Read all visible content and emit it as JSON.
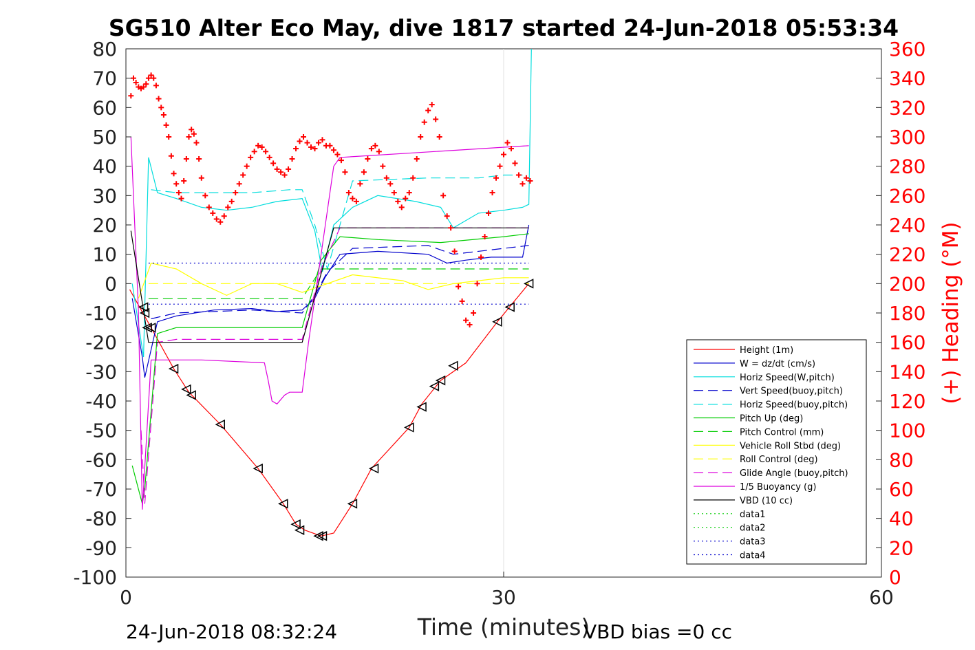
{
  "chart_data": {
    "type": "line",
    "title": "SG510 Alter Eco May, dive 1817 started 24-Jun-2018 05:53:34",
    "xlabel": "Time (minutes)",
    "ylabel_right": "(+) Heading (°M)",
    "xlim": [
      0,
      60
    ],
    "ylim_left": [
      -100,
      80
    ],
    "ylim_right": [
      0,
      360
    ],
    "x_ticks": [
      0,
      30,
      60
    ],
    "y_left_ticks": [
      80,
      70,
      60,
      50,
      40,
      30,
      20,
      10,
      0,
      -10,
      -20,
      -30,
      -40,
      -50,
      -60,
      -70,
      -80,
      -90,
      -100
    ],
    "y_right_ticks": [
      360,
      340,
      320,
      300,
      280,
      260,
      240,
      220,
      200,
      180,
      160,
      140,
      120,
      100,
      80,
      60,
      40,
      20,
      0
    ],
    "grid": "x at 30 only",
    "legend_position": "bottom-right",
    "footer_left": "24-Jun-2018 08:32:24",
    "footer_right": "VBD bias =0 cc",
    "series": [
      {
        "name": "Height (1m)",
        "color": "#ff0000",
        "style": "solid",
        "x": [
          0.3,
          2.0,
          3.8,
          5.0,
          7.5,
          10.5,
          12.5,
          13.5,
          14.2,
          15.5,
          16.5,
          18,
          19.5,
          22.5,
          23.5,
          25,
          27,
          29.5,
          32
        ],
        "y": [
          -2,
          -15,
          -29,
          -37,
          -48,
          -63,
          -75,
          -82,
          -84,
          -86,
          -85,
          -75,
          -63,
          -49,
          -41,
          -33,
          -27,
          -13,
          0
        ]
      },
      {
        "name": "W = dz/dt (cm/s)",
        "color": "#0000cc",
        "style": "solid",
        "x": [
          0.5,
          1.3,
          1.5,
          2.5,
          4,
          7,
          10,
          12,
          14,
          15,
          15.8,
          17,
          20,
          24,
          25.5,
          27,
          29,
          31.5,
          32
        ],
        "y": [
          -5,
          -25,
          -32,
          -13,
          -11,
          -9,
          -8.5,
          -9.5,
          -9,
          -5,
          2,
          10,
          11,
          10,
          7,
          8,
          9,
          9,
          20
        ]
      },
      {
        "name": "Horiz Speed(W,pitch)",
        "color": "#00dddd",
        "style": "solid",
        "x": [
          0.5,
          1.4,
          1.8,
          2.5,
          4,
          6,
          8,
          10,
          12,
          14,
          15,
          15.6,
          16.5,
          18,
          20,
          23,
          25,
          26,
          28,
          30,
          31.5,
          32,
          32.2
        ],
        "y": [
          0,
          -25,
          43,
          31,
          29,
          26,
          25,
          26,
          28,
          29,
          18,
          4,
          20,
          26,
          30,
          28,
          26,
          19,
          24,
          25,
          26,
          27,
          80
        ]
      },
      {
        "name": "Vert Speed(buoy,pitch)",
        "color": "#0000cc",
        "style": "dashed",
        "x": [
          2,
          4,
          10,
          14,
          15,
          16,
          18,
          24,
          26,
          30,
          32
        ],
        "y": [
          -12,
          -10,
          -9,
          -10,
          -4,
          4,
          12,
          13,
          10,
          12,
          13
        ]
      },
      {
        "name": "Horiz Speed(buoy,pitch)",
        "color": "#00dddd",
        "style": "dashed",
        "x": [
          2,
          4,
          8,
          10,
          13,
          14,
          15,
          16,
          18,
          24,
          28,
          30,
          31.5
        ],
        "y": [
          32,
          31,
          31,
          31,
          32,
          32,
          20,
          5,
          35,
          36,
          36,
          37,
          37
        ]
      },
      {
        "name": "Pitch Up (deg)",
        "color": "#00cc00",
        "style": "solid",
        "x": [
          0.5,
          1.3,
          1.5,
          2.5,
          4,
          7,
          10,
          14,
          15.5,
          17,
          20,
          25,
          30,
          32
        ],
        "y": [
          -62,
          -75,
          -70,
          -17,
          -15,
          -15,
          -15,
          -15,
          8,
          16,
          15,
          14,
          16,
          17
        ]
      },
      {
        "name": "Pitch Control (mm)",
        "color": "#00cc00",
        "style": "dashed",
        "x": [
          1.8,
          14,
          15.5,
          32
        ],
        "y": [
          -5,
          -5,
          5,
          5
        ]
      },
      {
        "name": "Vehicle Roll Stbd (deg)",
        "color": "#ffff00",
        "style": "solid",
        "x": [
          1,
          2,
          4,
          6,
          8,
          10,
          12,
          14,
          16,
          18,
          22,
          24,
          26,
          28,
          30,
          32
        ],
        "y": [
          -5,
          7,
          5,
          0,
          -4,
          0,
          0,
          -3,
          0,
          3,
          1,
          -2,
          0,
          1,
          2,
          2
        ]
      },
      {
        "name": "Roll Control (deg)",
        "color": "#ffff00",
        "style": "dashed",
        "x": [
          1.8,
          15.5,
          32
        ],
        "y": [
          0,
          0,
          0
        ]
      },
      {
        "name": "Glide Angle (buoy,pitch)",
        "color": "#dd00dd",
        "style": "dashed",
        "x": [
          1.2,
          1.5,
          2.5,
          4,
          10,
          14,
          15.5,
          17,
          24,
          30,
          32
        ],
        "y": [
          -50,
          -75,
          -20,
          -19,
          -19,
          -19,
          5,
          19,
          19,
          19,
          19
        ]
      },
      {
        "name": "1/5 Buoyancy (g)",
        "color": "#dd00dd",
        "style": "solid",
        "x": [
          0.4,
          1.0,
          1.3,
          2,
          3,
          6,
          11,
          11.3,
          11.6,
          12,
          12.6,
          13,
          14,
          14.5,
          15.5,
          16.5,
          17,
          32
        ],
        "y": [
          50,
          -10,
          -77,
          -26,
          -26,
          -26,
          -27,
          -33,
          -40,
          -41,
          -38,
          -37,
          -37,
          -20,
          10,
          40,
          43,
          47
        ]
      },
      {
        "name": "VBD (10 cc)",
        "color": "#000000",
        "style": "solid",
        "x": [
          0.4,
          1.8,
          14,
          16.5,
          32
        ],
        "y": [
          18,
          -20,
          -20,
          19,
          19
        ]
      },
      {
        "name": "data1",
        "color": "#00cc00",
        "style": "dotted",
        "x": [],
        "y": []
      },
      {
        "name": "data2",
        "color": "#00cc00",
        "style": "dotted",
        "x": [],
        "y": []
      },
      {
        "name": "data3",
        "color": "#0000cc",
        "style": "dotted",
        "x": [
          1.8,
          32
        ],
        "y": [
          7,
          7
        ]
      },
      {
        "name": "data4",
        "color": "#0000cc",
        "style": "dotted",
        "x": [
          1.8,
          32
        ],
        "y": [
          -7,
          -7
        ]
      }
    ],
    "heading": {
      "color": "#ff0000",
      "marker": "+",
      "x": [
        0.4,
        0.6,
        0.8,
        1.0,
        1.2,
        1.4,
        1.6,
        1.8,
        2.0,
        2.2,
        2.4,
        2.6,
        2.8,
        3.0,
        3.2,
        3.4,
        3.6,
        3.8,
        4.0,
        4.2,
        4.4,
        4.6,
        4.8,
        5.0,
        5.2,
        5.4,
        5.6,
        5.8,
        6.0,
        6.3,
        6.6,
        6.9,
        7.2,
        7.5,
        7.8,
        8.1,
        8.4,
        8.7,
        9.0,
        9.3,
        9.6,
        9.9,
        10.2,
        10.5,
        10.8,
        11.1,
        11.4,
        11.7,
        12.0,
        12.3,
        12.6,
        12.9,
        13.2,
        13.5,
        13.8,
        14.1,
        14.4,
        14.7,
        15.0,
        15.3,
        15.6,
        15.9,
        16.2,
        16.5,
        16.8,
        17.1,
        17.4,
        17.7,
        18.0,
        18.3,
        18.6,
        18.9,
        19.2,
        19.5,
        19.8,
        20.1,
        20.4,
        20.7,
        21.0,
        21.3,
        21.6,
        21.9,
        22.2,
        22.5,
        22.8,
        23.1,
        23.4,
        23.7,
        24.0,
        24.3,
        24.6,
        24.9,
        25.2,
        25.5,
        25.8,
        26.1,
        26.4,
        26.7,
        27.0,
        27.3,
        27.6,
        27.9,
        28.2,
        28.5,
        28.8,
        29.1,
        29.4,
        29.7,
        30.0,
        30.3,
        30.6,
        30.9,
        31.2,
        31.5,
        31.8,
        32.1
      ],
      "y": [
        328,
        340,
        337,
        334,
        333,
        334,
        336,
        340,
        342,
        340,
        335,
        326,
        320,
        315,
        308,
        300,
        287,
        275,
        268,
        262,
        258,
        270,
        285,
        300,
        305,
        302,
        296,
        285,
        272,
        260,
        252,
        248,
        244,
        242,
        246,
        252,
        256,
        262,
        268,
        274,
        280,
        286,
        290,
        294,
        293,
        290,
        286,
        282,
        278,
        276,
        274,
        278,
        285,
        292,
        297,
        300,
        296,
        293,
        292,
        296,
        298,
        294,
        294,
        291,
        288,
        284,
        276,
        262,
        258,
        256,
        268,
        276,
        285,
        292,
        294,
        290,
        280,
        272,
        268,
        262,
        256,
        252,
        258,
        262,
        272,
        285,
        300,
        310,
        318,
        322,
        312,
        300,
        260,
        246,
        238,
        222,
        198,
        188,
        175,
        172,
        180,
        200,
        218,
        232,
        248,
        262,
        272,
        280,
        288,
        296,
        292,
        282,
        274,
        268,
        272,
        270
      ]
    },
    "depth_markers": {
      "color": "#000000",
      "marker": "triangle-left",
      "x": [
        1.4,
        1.5,
        1.7,
        2.0,
        3.8,
        4.8,
        5.2,
        7.5,
        10.5,
        12.5,
        13.5,
        13.8,
        15.3,
        15.6,
        18,
        19.7,
        22.5,
        23.5,
        24.5,
        25,
        26,
        29.5,
        30.5,
        32
      ],
      "y": [
        -8,
        -10,
        -15,
        -15,
        -29,
        -36,
        -38,
        -48,
        -63,
        -75,
        -82,
        -84,
        -86,
        -86,
        -75,
        -63,
        -49,
        -42,
        -35,
        -33,
        -28,
        -13,
        -8,
        0
      ]
    }
  }
}
